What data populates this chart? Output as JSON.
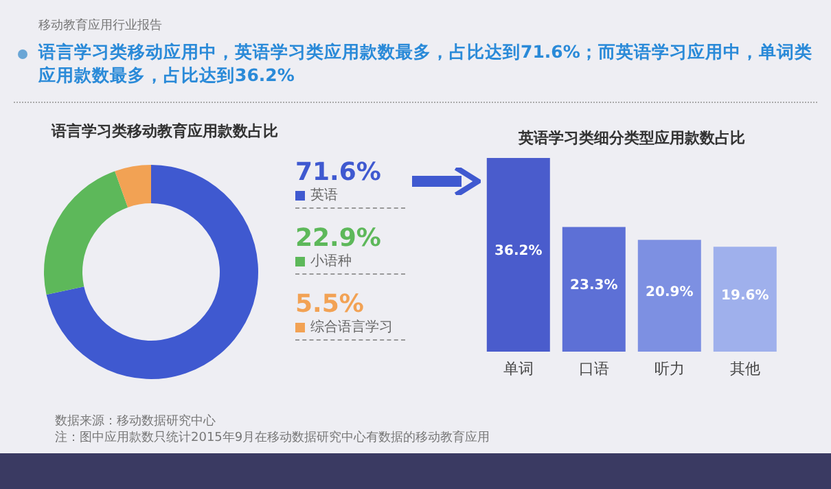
{
  "chart_data": [
    {
      "type": "donut",
      "title": "语言学习类移动教育应用款数占比",
      "categories": [
        "英语",
        "小语种",
        "综合语言学习"
      ],
      "values": [
        71.6,
        22.9,
        5.5
      ],
      "value_labels": [
        "71.6%",
        "22.9%",
        "5.5%"
      ],
      "colors": [
        "#3f59d0",
        "#5db85a",
        "#f2a254"
      ],
      "legend": "right",
      "annotations": [
        "移动教育应用行业报告",
        "语言学习类移动应用中，英语学习类应用款数最多，占比达到71.6%；而英语学习应用中，单词类应用款数最多，占比达到36.2%",
        "数据来源：移动数据研究中心",
        "注：图中应用款数只统计2015年9月在移动数据研究中心有数据的移动教育应用"
      ]
    },
    {
      "type": "bar",
      "title": "英语学习类细分类型应用款数占比",
      "categories": [
        "单词",
        "口语",
        "听力",
        "其他"
      ],
      "values": [
        36.2,
        23.3,
        20.9,
        19.6
      ],
      "value_labels": [
        "36.2%",
        "23.3%",
        "20.9%",
        "19.6%"
      ],
      "colors": [
        "#4a5ccc",
        "#5d70d6",
        "#7d90e2",
        "#9fb0ec"
      ]
    }
  ]
}
